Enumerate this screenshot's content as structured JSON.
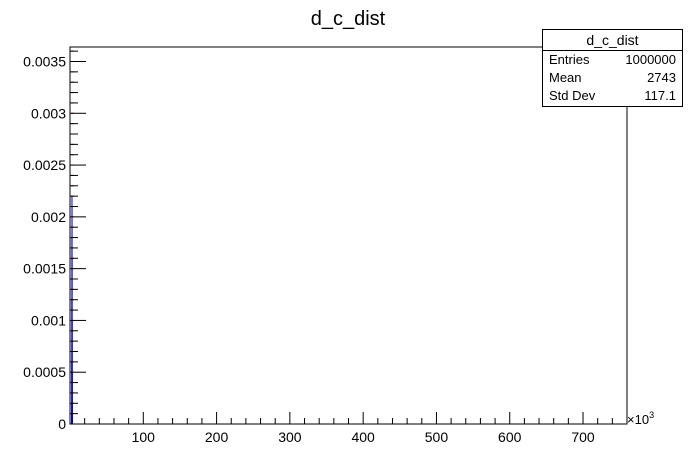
{
  "chart_data": {
    "type": "bar",
    "title": "d_c_dist",
    "xlabel": "",
    "ylabel": "",
    "x_exponent_label": "×10",
    "x_exponent_power": "3",
    "xlim": [
      0,
      760
    ],
    "ylim": [
      0,
      0.00364
    ],
    "x_tick_labels": [
      "100",
      "200",
      "300",
      "400",
      "500",
      "600",
      "700"
    ],
    "x_ticks": [
      100,
      200,
      300,
      400,
      500,
      600,
      700
    ],
    "y_tick_labels": [
      "0",
      "0.0005",
      "0.001",
      "0.0015",
      "0.002",
      "0.0025",
      "0.003",
      "0.0035"
    ],
    "y_ticks": [
      0,
      0.0005,
      0.001,
      0.0015,
      0.002,
      0.0025,
      0.003,
      0.0035
    ],
    "grid": false,
    "legend": "none",
    "series": [
      {
        "color": "#0000cc",
        "bins_x": [
          2.2,
          2.3,
          2.4,
          2.5,
          2.6,
          2.7,
          2.8,
          2.9,
          3.0,
          3.1,
          3.2,
          3.3
        ],
        "values": [
          0.0001,
          0.0002,
          0.0006,
          0.0012,
          0.0018,
          0.0022,
          0.0021,
          0.0016,
          0.001,
          0.0005,
          0.0002,
          0.0001
        ]
      }
    ],
    "overlay_marks_color": "#cc0000"
  },
  "stats": {
    "title": "d_c_dist",
    "rows": [
      {
        "label": "Entries",
        "value": "1000000"
      },
      {
        "label": "Mean",
        "value": "2743"
      },
      {
        "label": "Std Dev",
        "value": "117.1"
      }
    ]
  }
}
